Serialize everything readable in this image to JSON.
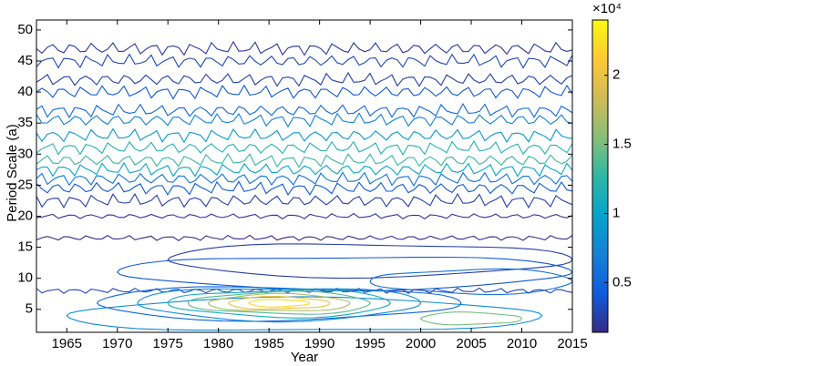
{
  "chart_data": {
    "type": "contour",
    "xlabel": "Year",
    "ylabel": "Period Scale (a)",
    "xlim": [
      1962,
      2015
    ],
    "xticks": [
      1965,
      1970,
      1975,
      1980,
      1985,
      1990,
      1995,
      2000,
      2005,
      2010,
      2015
    ],
    "ylim": [
      1.3,
      51.6
    ],
    "yticks": [
      5,
      10,
      15,
      20,
      25,
      30,
      35,
      40,
      45,
      50
    ],
    "clim": [
      1400,
      24000
    ],
    "cticks": [
      {
        "value": 5000,
        "label": "0.5"
      },
      {
        "value": 10000,
        "label": "1"
      },
      {
        "value": 15000,
        "label": "1.5"
      },
      {
        "value": 20000,
        "label": "2"
      }
    ],
    "colorbar_scale_label": "×10⁴",
    "colormap": [
      "#352a87",
      "#0f5cdd",
      "#1481d6",
      "#06a4ca",
      "#2eb7a4",
      "#87bf77",
      "#d1bb59",
      "#fec832",
      "#f9fb0e"
    ],
    "contours": [
      {
        "level": 2000,
        "period": 47,
        "x0": 1962,
        "x1": 2015
      },
      {
        "level": 3000,
        "period": 45,
        "x0": 1962,
        "x1": 2015
      },
      {
        "level": 2500,
        "period": 42,
        "x0": 1962,
        "x1": 2015
      },
      {
        "level": 4000,
        "period": 40,
        "x0": 1962,
        "x1": 2015
      },
      {
        "level": 5000,
        "period": 37,
        "x0": 1962,
        "x1": 2015
      },
      {
        "level": 7000,
        "period": 35.5,
        "x0": 1962,
        "x1": 2015
      },
      {
        "level": 9000,
        "period": 33,
        "x0": 1962,
        "x1": 2015
      },
      {
        "level": 12000,
        "period": 31,
        "x0": 1962,
        "x1": 2015
      },
      {
        "level": 13000,
        "period": 29,
        "x0": 1962,
        "x1": 2015
      },
      {
        "level": 10000,
        "period": 27.5,
        "x0": 1962,
        "x1": 2015
      },
      {
        "level": 6000,
        "period": 26,
        "x0": 1962,
        "x1": 2015
      },
      {
        "level": 4000,
        "period": 24.5,
        "x0": 1962,
        "x1": 2015
      },
      {
        "level": 2500,
        "period": 22.5,
        "x0": 1962,
        "x1": 2015
      },
      {
        "level": 2000,
        "period": 20,
        "x0": 1962,
        "x1": 2015
      },
      {
        "level": 1500,
        "period": 16.5,
        "x0": 1962,
        "x1": 2015
      },
      {
        "level": 2500,
        "period": 13,
        "x0": 1975,
        "x1": 2015
      },
      {
        "level": 4000,
        "period": 11,
        "x0": 1970,
        "x1": 2015
      },
      {
        "level": 6000,
        "period": 9.5,
        "x0": 1995,
        "x1": 2015
      },
      {
        "level": 3000,
        "period": 8,
        "x0": 1962,
        "x1": 2015
      },
      {
        "level": 8000,
        "period": 4,
        "x0": 1965,
        "x1": 2012
      },
      {
        "level": 15000,
        "period": 3.5,
        "x0": 2000,
        "x1": 2010
      },
      {
        "level": 5000,
        "period": 6,
        "x0": 1968,
        "x1": 2004
      },
      {
        "level": 8000,
        "period": 6,
        "x0": 1972,
        "x1": 2000
      },
      {
        "level": 11000,
        "period": 6,
        "x0": 1975,
        "x1": 1997
      },
      {
        "level": 14000,
        "period": 6,
        "x0": 1977,
        "x1": 1995
      },
      {
        "level": 17000,
        "period": 6,
        "x0": 1979,
        "x1": 1993
      },
      {
        "level": 20000,
        "period": 6,
        "x0": 1981,
        "x1": 1991
      },
      {
        "level": 22000,
        "period": 6,
        "x0": 1983,
        "x1": 1989
      }
    ]
  }
}
